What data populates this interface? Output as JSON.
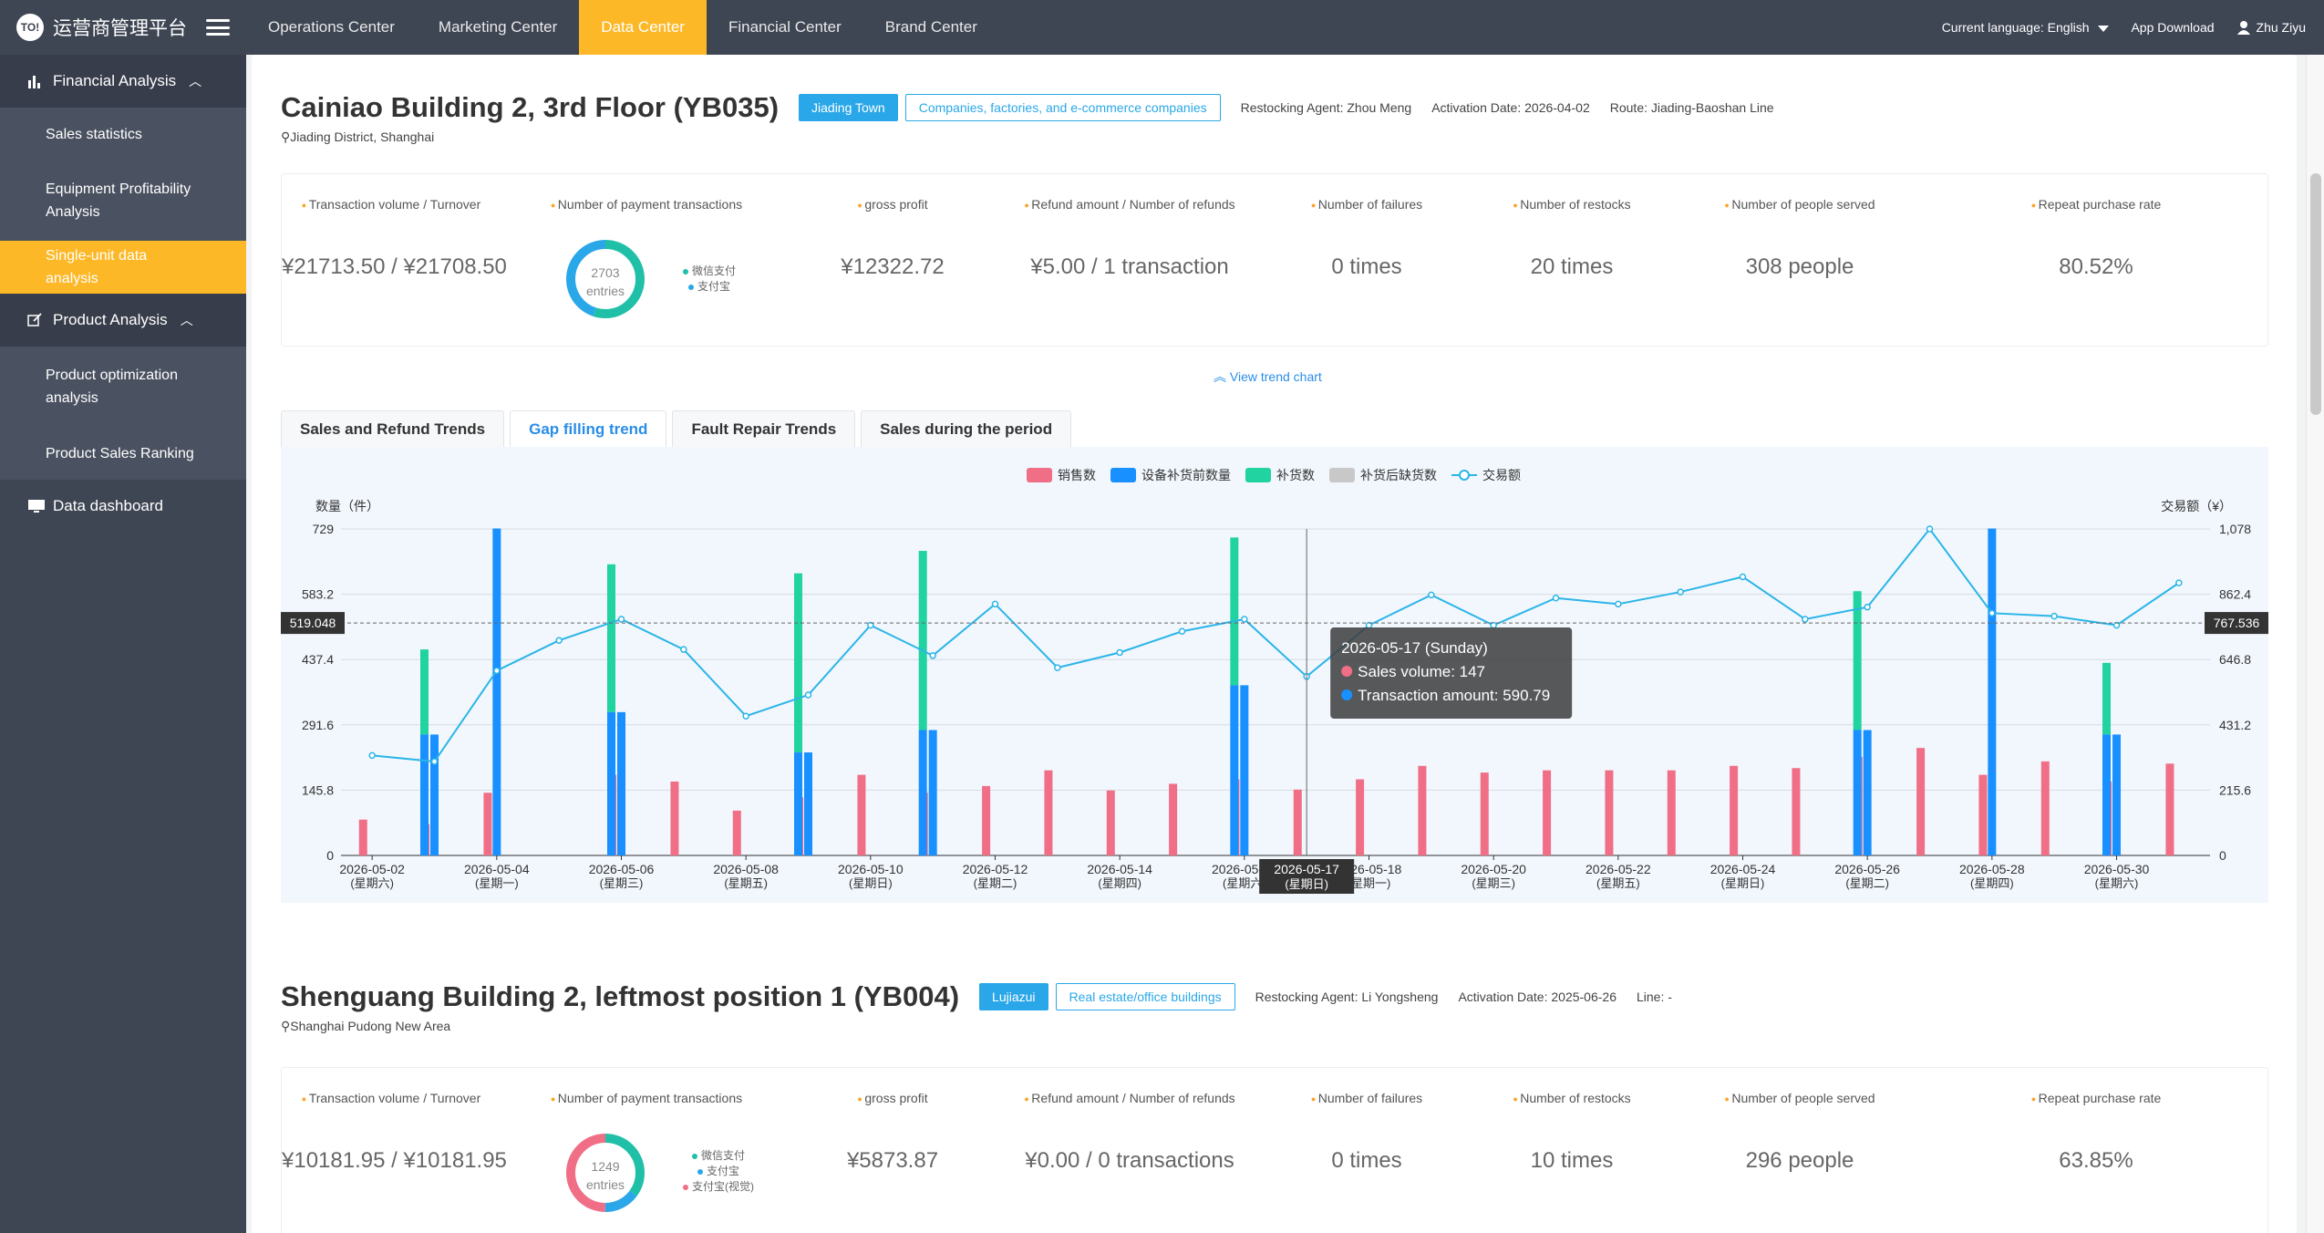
{
  "app": {
    "logo_mark": "TO!",
    "title": "运营商管理平台"
  },
  "sidebar": {
    "groups": [
      {
        "label": "Financial Analysis",
        "items": [
          "Sales statistics",
          "Equipment Profitability Analysis",
          "Single-unit data analysis"
        ]
      },
      {
        "label": "Product Analysis",
        "items": [
          "Product optimization analysis",
          "Product Sales Ranking"
        ]
      }
    ],
    "plain": "Data dashboard",
    "active_item": "Single-unit data analysis"
  },
  "topnav": {
    "items": [
      "Operations Center",
      "Marketing Center",
      "Data Center",
      "Financial Center",
      "Brand Center"
    ],
    "active": "Data Center",
    "language_label": "Current language:",
    "language_value": "English",
    "app_download": "App Download",
    "user": "Zhu Ziyu"
  },
  "colors": {
    "accent": "#fcb827",
    "sales": "#f06e86",
    "stock_before": "#1890ff",
    "restock": "#20d3a0",
    "shortage": "#c8c8c8",
    "amount": "#2bb5e8"
  },
  "stat_labels": [
    "Transaction volume / Turnover",
    "Number of payment transactions",
    "gross profit",
    "Refund amount / Number of refunds",
    "Number of failures",
    "Number of restocks",
    "Number of people served",
    "Repeat purchase rate"
  ],
  "unit1": {
    "title": "Cainiao Building 2, 3rd Floor (YB035)",
    "tag_area": "Jiading Town",
    "tag_type": "Companies, factories, and e-commerce companies",
    "agent": "Restocking Agent: Zhou Meng",
    "activation": "Activation Date: 2026-04-02",
    "route": "Route: Jiading-Baoshan Line",
    "location": "Jiading District, Shanghai",
    "stats": {
      "turnover": "¥21713.50 / ¥21708.50",
      "payments_count": "2703",
      "payments_unit": "entries",
      "payment_legend": [
        "微信支付",
        "支付宝"
      ],
      "payment_split": [
        0.55,
        0.45
      ],
      "gross_profit": "¥12322.72",
      "refund": "¥5.00 / 1 transaction",
      "failures": "0 times",
      "restocks": "20 times",
      "people": "308 people",
      "repeat_rate": "80.52%"
    },
    "trend_link": "View trend chart",
    "tabs": [
      "Sales and Refund Trends",
      "Gap filling trend",
      "Fault Repair Trends",
      "Sales during the period"
    ],
    "active_tab": "Gap filling trend"
  },
  "chart_data": {
    "type": "bar",
    "legend": [
      "销售数",
      "设备补货前数量",
      "补货数",
      "补货后缺货数",
      "交易额"
    ],
    "ylabel_left": "数量（件）",
    "ylabel_right": "交易额（¥）",
    "yticks_left": [
      "0",
      "145.8",
      "291.6",
      "437.4",
      "583.2",
      "729"
    ],
    "yticks_right": [
      "0",
      "215.6",
      "431.2",
      "646.8",
      "862.4",
      "1,078"
    ],
    "ylim_left": [
      0,
      729
    ],
    "ylim_right": [
      0,
      1078
    ],
    "x_labels": [
      [
        "2026-05-02",
        "(星期六)"
      ],
      [
        "2026-05-04",
        "(星期一)"
      ],
      [
        "2026-05-06",
        "(星期三)"
      ],
      [
        "2026-05-08",
        "(星期五)"
      ],
      [
        "2026-05-10",
        "(星期日)"
      ],
      [
        "2026-05-12",
        "(星期二)"
      ],
      [
        "2026-05-14",
        "(星期四)"
      ],
      [
        "2026-05-16",
        "(星期六)"
      ],
      [
        "2026-05-18",
        "(星期一)"
      ],
      [
        "2026-05-20",
        "(星期三)"
      ],
      [
        "2026-05-22",
        "(星期五)"
      ],
      [
        "2026-05-24",
        "(星期日)"
      ],
      [
        "2026-05-26",
        "(星期二)"
      ],
      [
        "2026-05-28",
        "(星期四)"
      ],
      [
        "2026-05-30",
        "(星期六)"
      ]
    ],
    "days": [
      "05-02",
      "05-03",
      "05-04",
      "05-05",
      "05-06",
      "05-07",
      "05-08",
      "05-09",
      "05-10",
      "05-11",
      "05-12",
      "05-13",
      "05-14",
      "05-15",
      "05-16",
      "05-17",
      "05-18",
      "05-19",
      "05-20",
      "05-21",
      "05-22",
      "05-23",
      "05-24",
      "05-25",
      "05-26",
      "05-27",
      "05-28",
      "05-29",
      "05-30",
      "05-31"
    ],
    "sales": [
      80,
      70,
      140,
      0,
      180,
      165,
      100,
      130,
      180,
      140,
      155,
      190,
      145,
      160,
      170,
      147,
      170,
      200,
      185,
      190,
      190,
      190,
      200,
      195,
      220,
      240,
      180,
      210,
      165,
      205
    ],
    "stock_before": [
      0,
      270,
      730,
      0,
      320,
      0,
      0,
      230,
      0,
      280,
      0,
      0,
      0,
      0,
      380,
      0,
      0,
      0,
      0,
      0,
      0,
      0,
      0,
      0,
      280,
      0,
      730,
      0,
      270,
      0
    ],
    "restock": [
      0,
      190,
      0,
      0,
      330,
      0,
      0,
      400,
      0,
      400,
      0,
      0,
      0,
      0,
      330,
      0,
      0,
      0,
      0,
      0,
      0,
      0,
      0,
      0,
      310,
      0,
      0,
      0,
      160,
      0
    ],
    "amount": [
      330,
      310,
      610,
      710,
      780,
      680,
      460,
      530,
      760,
      660,
      830,
      620,
      670,
      740,
      780,
      590.79,
      760,
      860,
      760,
      850,
      830,
      870,
      920,
      780,
      820,
      1078,
      800,
      790,
      760,
      900
    ],
    "crosshair_left": "519.048",
    "crosshair_right": "767.536",
    "crosshair_x": "2026-05-17",
    "crosshair_x_sub": "(星期日)",
    "tooltip": {
      "title": "2026-05-17 (Sunday)",
      "sales": "Sales volume: 147",
      "amount": "Transaction amount: 590.79"
    }
  },
  "unit2": {
    "title": "Shenguang Building 2, leftmost position 1 (YB004)",
    "tag_area": "Lujiazui",
    "tag_type": "Real estate/office buildings",
    "agent": "Restocking Agent: Li Yongsheng",
    "activation": "Activation Date: 2025-06-26",
    "route": "Line: -",
    "location": "Shanghai Pudong New Area",
    "stats": {
      "turnover": "¥10181.95 / ¥10181.95",
      "payments_count": "1249",
      "payments_unit": "entries",
      "payment_legend": [
        "微信支付",
        "支付宝",
        "支付宝(视觉)"
      ],
      "payment_split": [
        0.35,
        0.15,
        0.5
      ],
      "gross_profit": "¥5873.87",
      "refund": "¥0.00 / 0 transactions",
      "failures": "0 times",
      "restocks": "10 times",
      "people": "296 people",
      "repeat_rate": "63.85%"
    }
  }
}
